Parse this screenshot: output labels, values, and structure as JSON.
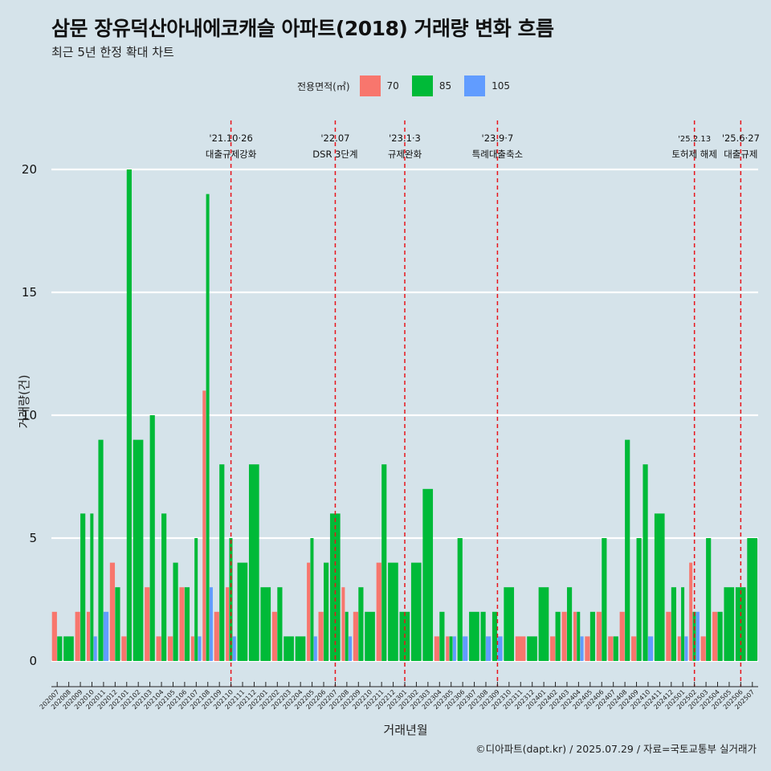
{
  "header": {
    "title": "삼문 장유덕산아내에코캐슬 아파트(2018) 거래량 변화 흐름",
    "subtitle": "최근 5년 한정 확대 차트"
  },
  "legend": {
    "title": "전용면적(㎡)",
    "items": [
      {
        "label": "70",
        "color": "#f8766d"
      },
      {
        "label": "85",
        "color": "#00ba38"
      },
      {
        "label": "105",
        "color": "#619cff"
      }
    ]
  },
  "caption": "©디아파트(dapt.kr) / 2025.07.29 / 자료=국토교통부 실거래가",
  "chart_data": {
    "type": "bar",
    "title": "삼문 장유덕산아내에코캐슬 아파트(2018) 거래량 변화 흐름",
    "subtitle": "최근 5년 한정 확대 차트",
    "xlabel": "거래년월",
    "ylabel": "거래량(건)",
    "ylim": [
      0,
      20
    ],
    "yticks": [
      0,
      5,
      10,
      15,
      20
    ],
    "grid": "horizontal major lines",
    "legend_position": "top",
    "categories": [
      "202007",
      "202008",
      "202009",
      "202010",
      "202011",
      "202012",
      "202101",
      "202102",
      "202103",
      "202104",
      "202105",
      "202106",
      "202107",
      "202108",
      "202109",
      "202110",
      "202111",
      "202112",
      "202201",
      "202202",
      "202203",
      "202204",
      "202205",
      "202206",
      "202207",
      "202208",
      "202209",
      "202210",
      "202211",
      "202212",
      "202301",
      "202302",
      "202303",
      "202304",
      "202305",
      "202306",
      "202307",
      "202308",
      "202309",
      "202310",
      "202311",
      "202312",
      "202401",
      "202402",
      "202403",
      "202404",
      "202405",
      "202406",
      "202407",
      "202408",
      "202409",
      "202410",
      "202411",
      "202412",
      "202501",
      "202502",
      "202503",
      "202504",
      "202505",
      "202506",
      "202507"
    ],
    "series": [
      {
        "name": "70",
        "color": "#f8766d",
        "values": [
          2,
          0,
          2,
          2,
          0,
          4,
          1,
          0,
          3,
          1,
          1,
          3,
          1,
          11,
          2,
          3,
          0,
          0,
          0,
          2,
          0,
          0,
          4,
          2,
          0,
          3,
          2,
          0,
          4,
          0,
          0,
          0,
          0,
          1,
          1,
          0,
          0,
          0,
          0,
          0,
          1,
          0,
          0,
          1,
          2,
          2,
          1,
          2,
          1,
          2,
          1,
          0,
          0,
          2,
          1,
          4,
          1,
          2,
          0,
          0,
          0
        ]
      },
      {
        "name": "85",
        "color": "#00ba38",
        "values": [
          1,
          1,
          6,
          6,
          9,
          3,
          20,
          9,
          10,
          6,
          4,
          3,
          5,
          19,
          8,
          5,
          4,
          8,
          3,
          3,
          1,
          1,
          5,
          4,
          6,
          2,
          3,
          2,
          8,
          4,
          2,
          4,
          7,
          2,
          1,
          5,
          2,
          2,
          2,
          3,
          0,
          1,
          3,
          2,
          3,
          2,
          2,
          5,
          1,
          9,
          5,
          8,
          6,
          3,
          3,
          2,
          5,
          2,
          3,
          3,
          5
        ]
      },
      {
        "name": "105",
        "color": "#619cff",
        "values": [
          0,
          0,
          0,
          1,
          2,
          0,
          0,
          0,
          0,
          0,
          0,
          0,
          1,
          3,
          0,
          1,
          0,
          0,
          0,
          0,
          0,
          0,
          1,
          0,
          0,
          1,
          0,
          0,
          0,
          0,
          0,
          0,
          0,
          0,
          1,
          1,
          0,
          1,
          1,
          0,
          0,
          0,
          0,
          0,
          0,
          1,
          0,
          0,
          0,
          0,
          0,
          1,
          0,
          0,
          1,
          2,
          0,
          0,
          0,
          0,
          0
        ]
      }
    ],
    "annotations": [
      {
        "month": "202110",
        "date": "'21.10·26",
        "label": "대출규제강화"
      },
      {
        "month": "202207",
        "date": "'22.07",
        "label": "DSR 3단계"
      },
      {
        "month": "202301",
        "date": "'23.1·3",
        "label": "규제완화"
      },
      {
        "month": "202309",
        "date": "'23.9·7",
        "label": "특례대출축소"
      },
      {
        "month": "202502",
        "date": "'25.2.13",
        "label": "토허제 해제"
      },
      {
        "month": "202506",
        "date": "'25.6·27",
        "label": "대출규제"
      }
    ]
  }
}
